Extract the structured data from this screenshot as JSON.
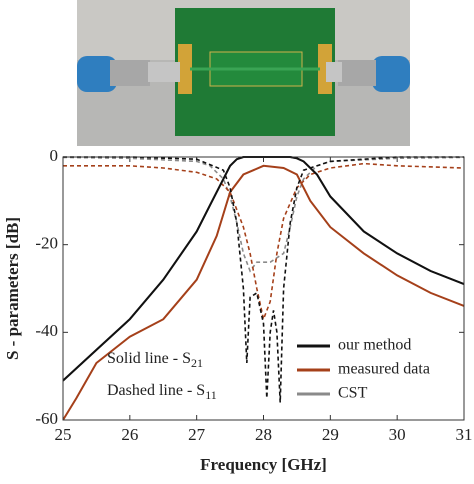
{
  "chart_data": {
    "type": "line",
    "xlabel": "Frequency [GHz]",
    "ylabel": "S - parameters [dB]",
    "xlim": [
      25,
      31
    ],
    "ylim": [
      -60,
      0
    ],
    "xticks": [
      25,
      26,
      27,
      28,
      29,
      30,
      31
    ],
    "yticks": [
      -60,
      -40,
      -20,
      0
    ],
    "legend": "bottom-right",
    "annotations": [
      {
        "text": "Solid line - S",
        "sub": "21"
      },
      {
        "text": "Dashed line - S",
        "sub": "11"
      }
    ],
    "series": [
      {
        "name": "our method",
        "color": "#111111",
        "s21": {
          "x": [
            25,
            25.5,
            26,
            26.5,
            27,
            27.2,
            27.4,
            27.5,
            27.6,
            27.7,
            28,
            28.4,
            28.5,
            28.6,
            28.8,
            29,
            29.5,
            30,
            30.5,
            31
          ],
          "values": [
            -51,
            -44,
            -37,
            -28,
            -17,
            -11,
            -5,
            -2,
            -0.5,
            0,
            0,
            0,
            -0.3,
            -1,
            -4,
            -9,
            -17,
            -22,
            -26,
            -29
          ]
        },
        "s11": {
          "x": [
            25,
            26,
            27,
            27.4,
            27.5,
            27.6,
            27.7,
            27.75,
            27.8,
            27.9,
            28,
            28.05,
            28.1,
            28.15,
            28.2,
            28.25,
            28.3,
            28.4,
            28.5,
            28.6,
            29,
            30,
            31
          ],
          "values": [
            0,
            0,
            -0.5,
            -3,
            -7,
            -15,
            -30,
            -47,
            -32,
            -31,
            -38,
            -55,
            -40,
            -35,
            -40,
            -56,
            -30,
            -15,
            -7,
            -3,
            -1,
            0,
            0
          ]
        }
      },
      {
        "name": "measured data",
        "color": "#a5401a",
        "s21": {
          "x": [
            25,
            25.2,
            25.5,
            26,
            26.5,
            27,
            27.3,
            27.5,
            27.7,
            28,
            28.3,
            28.5,
            28.7,
            29,
            29.5,
            30,
            30.5,
            31
          ],
          "values": [
            -60,
            -55,
            -47,
            -41,
            -37,
            -28,
            -18,
            -8,
            -4,
            -2,
            -2.5,
            -4,
            -10,
            -16,
            -22,
            -27,
            -31,
            -34
          ]
        },
        "s11": {
          "x": [
            25,
            26,
            26.5,
            27,
            27.3,
            27.5,
            27.7,
            27.8,
            27.9,
            28,
            28.1,
            28.2,
            28.3,
            28.5,
            28.7,
            29,
            29.5,
            30,
            31
          ],
          "values": [
            -2,
            -2,
            -2.5,
            -3.5,
            -5,
            -8,
            -16,
            -22,
            -30,
            -37,
            -33,
            -22,
            -14,
            -7,
            -4,
            -2.5,
            -1.5,
            -2,
            -2.5
          ]
        }
      },
      {
        "name": "CST",
        "color": "#8a8a8a",
        "s21": {
          "x": [
            25,
            25.5,
            26,
            26.5,
            27,
            27.2,
            27.4,
            27.5,
            27.6,
            27.7,
            28,
            28.4,
            28.5,
            28.6,
            28.8,
            29,
            29.5,
            30,
            30.5,
            31
          ],
          "values": [
            -51,
            -44,
            -37,
            -28,
            -17,
            -11,
            -5,
            -2,
            -0.5,
            0,
            0,
            0,
            -0.3,
            -1,
            -4,
            -9,
            -17,
            -22,
            -26,
            -29
          ]
        },
        "s11": {
          "x": [
            25,
            26,
            27,
            27.2,
            27.4,
            27.5,
            27.6,
            27.7,
            27.8,
            27.9,
            28.1,
            28.3,
            28.4,
            28.5,
            28.6,
            28.8,
            29,
            30,
            31
          ],
          "values": [
            -0.1,
            -0.3,
            -1,
            -2,
            -5,
            -9,
            -15,
            -22,
            -26,
            -24,
            -24,
            -22,
            -16,
            -9,
            -5,
            -2,
            -1,
            -0.3,
            -0.1
          ]
        }
      }
    ]
  }
}
